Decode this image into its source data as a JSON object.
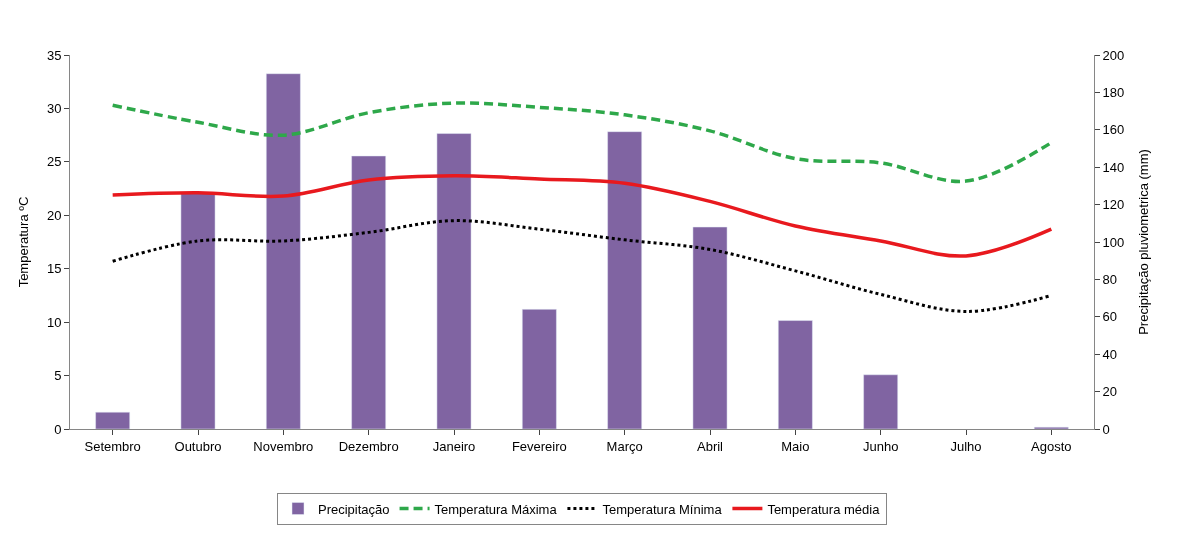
{
  "chart_data": {
    "type": "line",
    "ylabel": "Temperatura ºC",
    "y2label": "Precipitação pluviometrica (mm)",
    "categories": [
      "Setembro",
      "Outubro",
      "Novembro",
      "Dezembro",
      "Janeiro",
      "Fevereiro",
      "Março",
      "Abril",
      "Maio",
      "Junho",
      "Julho",
      "Agosto"
    ],
    "series": [
      {
        "name": "Precipitação",
        "type": "bar",
        "axis": "y2",
        "color": "#8064a2",
        "values": [
          9,
          126,
          190,
          146,
          158,
          64,
          159,
          108,
          58,
          29,
          null,
          1
        ]
      },
      {
        "name": "Temperatura Máxima",
        "color": "#2ea84a",
        "line_style": "dashed",
        "values": [
          30.3,
          28.7,
          27.5,
          29.6,
          30.5,
          30.1,
          29.4,
          27.9,
          25.3,
          24.9,
          23.2,
          26.8
        ]
      },
      {
        "name": "Temperatura Mínima",
        "color": "#000000",
        "line_style": "dotted",
        "values": [
          15.7,
          17.6,
          17.6,
          18.4,
          19.5,
          18.7,
          17.7,
          16.8,
          14.8,
          12.6,
          11.0,
          12.5
        ]
      },
      {
        "name": "Temperatura média",
        "color": "#e8191e",
        "line_style": "solid",
        "values": [
          21.9,
          22.1,
          21.8,
          23.3,
          23.7,
          23.4,
          23.0,
          21.3,
          19.0,
          17.6,
          16.2,
          18.7
        ]
      }
    ],
    "ylim": [
      0,
      35
    ],
    "yticks": [
      0,
      5,
      10,
      15,
      20,
      25,
      30,
      35
    ],
    "y2lim": [
      0,
      200
    ],
    "y2ticks": [
      0,
      20,
      40,
      60,
      80,
      100,
      120,
      140,
      160,
      180,
      200
    ],
    "legend": "bottom",
    "marker": "none"
  }
}
